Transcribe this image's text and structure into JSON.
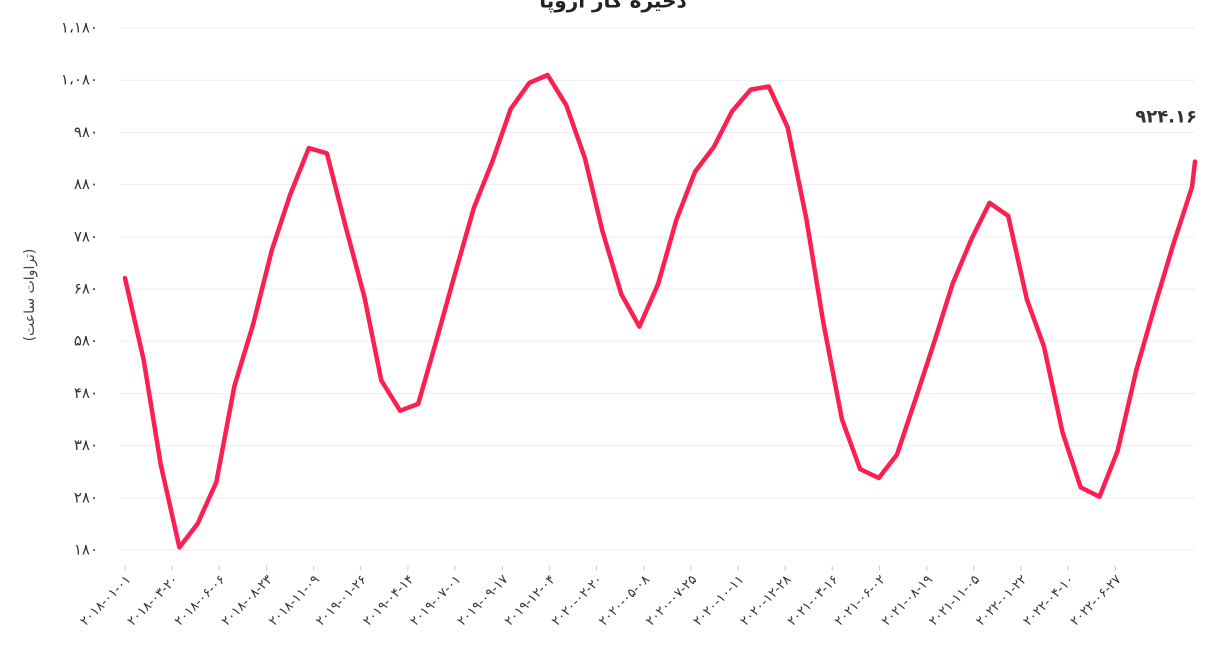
{
  "chart_data": {
    "type": "line",
    "title": "ذخیره گاز اروپا",
    "ylabel": "(تراوات ساعت)",
    "x": [
      "2018-01-01",
      "2018-02-01",
      "2018-03-01",
      "2018-04-01",
      "2018-05-01",
      "2018-06-01",
      "2018-07-01",
      "2018-08-01",
      "2018-09-01",
      "2018-10-01",
      "2018-11-01",
      "2018-12-01",
      "2019-01-01",
      "2019-02-01",
      "2019-03-01",
      "2019-04-01",
      "2019-05-01",
      "2019-06-01",
      "2019-07-01",
      "2019-08-01",
      "2019-09-01",
      "2019-10-01",
      "2019-11-01",
      "2019-12-01",
      "2020-01-01",
      "2020-02-01",
      "2020-03-01",
      "2020-04-01",
      "2020-05-01",
      "2020-06-01",
      "2020-07-01",
      "2020-08-01",
      "2020-09-01",
      "2020-10-01",
      "2020-11-01",
      "2020-12-01",
      "2021-01-01",
      "2021-02-01",
      "2021-03-01",
      "2021-04-01",
      "2021-05-01",
      "2021-06-01",
      "2021-07-01",
      "2021-08-01",
      "2021-09-01",
      "2021-10-01",
      "2021-11-01",
      "2021-12-01",
      "2022-01-01",
      "2022-02-01",
      "2022-03-01",
      "2022-04-01",
      "2022-05-01",
      "2022-06-01",
      "2022-07-01",
      "2022-08-01",
      "2022-09-01",
      "2022-10-01",
      "2022-11-01",
      "2022-11-06"
    ],
    "series": [
      {
        "color": "#fb1f52",
        "values": [
          701,
          544,
          344,
          185,
          230,
          310,
          494,
          613,
          755,
          860,
          950,
          940,
          800,
          665,
          505,
          447,
          460,
          585,
          710,
          835,
          925,
          1025,
          1075,
          1090,
          1032,
          930,
          790,
          670,
          608,
          690,
          812,
          905,
          952,
          1020,
          1062,
          1068,
          990,
          815,
          617,
          430,
          335,
          318,
          363,
          470,
          580,
          690,
          775,
          845,
          820,
          660,
          570,
          405,
          300,
          282,
          370,
          525,
          650,
          765,
          875,
          924.16
        ],
        "value_labels": [
          null,
          null,
          null,
          null,
          null,
          null,
          null,
          null,
          null,
          null,
          null,
          null,
          null,
          null,
          null,
          null,
          null,
          null,
          null,
          null,
          null,
          null,
          null,
          null,
          null,
          null,
          null,
          null,
          null,
          null,
          null,
          null,
          null,
          null,
          null,
          null,
          null,
          null,
          null,
          null,
          null,
          null,
          null,
          null,
          null,
          null,
          null,
          null,
          null,
          null,
          null,
          null,
          null,
          null,
          null,
          null,
          null,
          null,
          null,
          "۹۲۴.۱۶"
        ]
      }
    ],
    "xlim": [
      "2018-01-01",
      "2022-11-06"
    ],
    "xticks": [
      {
        "value": "2018-01-01",
        "label": "۲۰۱۸-۰۱-۰۱"
      },
      {
        "value": "2018-03-20",
        "label": "۲۰۱۸-۰۳-۲۰"
      },
      {
        "value": "2018-06-06",
        "label": "۲۰۱۸-۰۶-۰۶"
      },
      {
        "value": "2018-08-23",
        "label": "۲۰۱۸-۰۸-۲۳"
      },
      {
        "value": "2018-11-09",
        "label": "۲۰۱۸-۱۱-۰۹"
      },
      {
        "value": "2019-01-26",
        "label": "۲۰۱۹-۰۱-۲۶"
      },
      {
        "value": "2019-04-14",
        "label": "۲۰۱۹-۰۴-۱۴"
      },
      {
        "value": "2019-07-01",
        "label": "۲۰۱۹-۰۷-۰۱"
      },
      {
        "value": "2019-09-17",
        "label": "۲۰۱۹-۰۹-۱۷"
      },
      {
        "value": "2019-12-04",
        "label": "۲۰۱۹-۱۲-۰۴"
      },
      {
        "value": "2020-02-20",
        "label": "۲۰۲۰-۰۲-۲۰"
      },
      {
        "value": "2020-05-08",
        "label": "۲۰۲۰-۰۵-۰۸"
      },
      {
        "value": "2020-07-25",
        "label": "۲۰۲۰-۰۷-۲۵"
      },
      {
        "value": "2020-10-11",
        "label": "۲۰۲۰-۱۰-۱۱"
      },
      {
        "value": "2020-12-28",
        "label": "۲۰۲۰-۱۲-۲۸"
      },
      {
        "value": "2021-03-16",
        "label": "۲۰۲۱-۰۳-۱۶"
      },
      {
        "value": "2021-06-02",
        "label": "۲۰۲۱-۰۶-۰۲"
      },
      {
        "value": "2021-08-19",
        "label": "۲۰۲۱-۰۸-۱۹"
      },
      {
        "value": "2021-11-05",
        "label": "۲۰۲۱-۱۱-۰۵"
      },
      {
        "value": "2022-01-22",
        "label": "۲۰۲۲-۰۱-۲۲"
      },
      {
        "value": "2022-04-10",
        "label": "۲۰۲۲-۰۴-۱۰"
      },
      {
        "value": "2022-06-27",
        "label": "۲۰۲۲-۰۶-۲۷"
      }
    ],
    "ylim": [
      150,
      1180
    ],
    "yticks": [
      {
        "value": 180,
        "label": "۱۸۰"
      },
      {
        "value": 280,
        "label": "۲۸۰"
      },
      {
        "value": 380,
        "label": "۳۸۰"
      },
      {
        "value": 480,
        "label": "۴۸۰"
      },
      {
        "value": 580,
        "label": "۵۸۰"
      },
      {
        "value": 680,
        "label": "۶۸۰"
      },
      {
        "value": 780,
        "label": "۷۸۰"
      },
      {
        "value": 880,
        "label": "۸۸۰"
      },
      {
        "value": 980,
        "label": "۹۸۰"
      },
      {
        "value": 1080,
        "label": "۱،۰۸۰"
      },
      {
        "value": 1180,
        "label": "۱،۱۸۰"
      }
    ],
    "grid": true
  }
}
